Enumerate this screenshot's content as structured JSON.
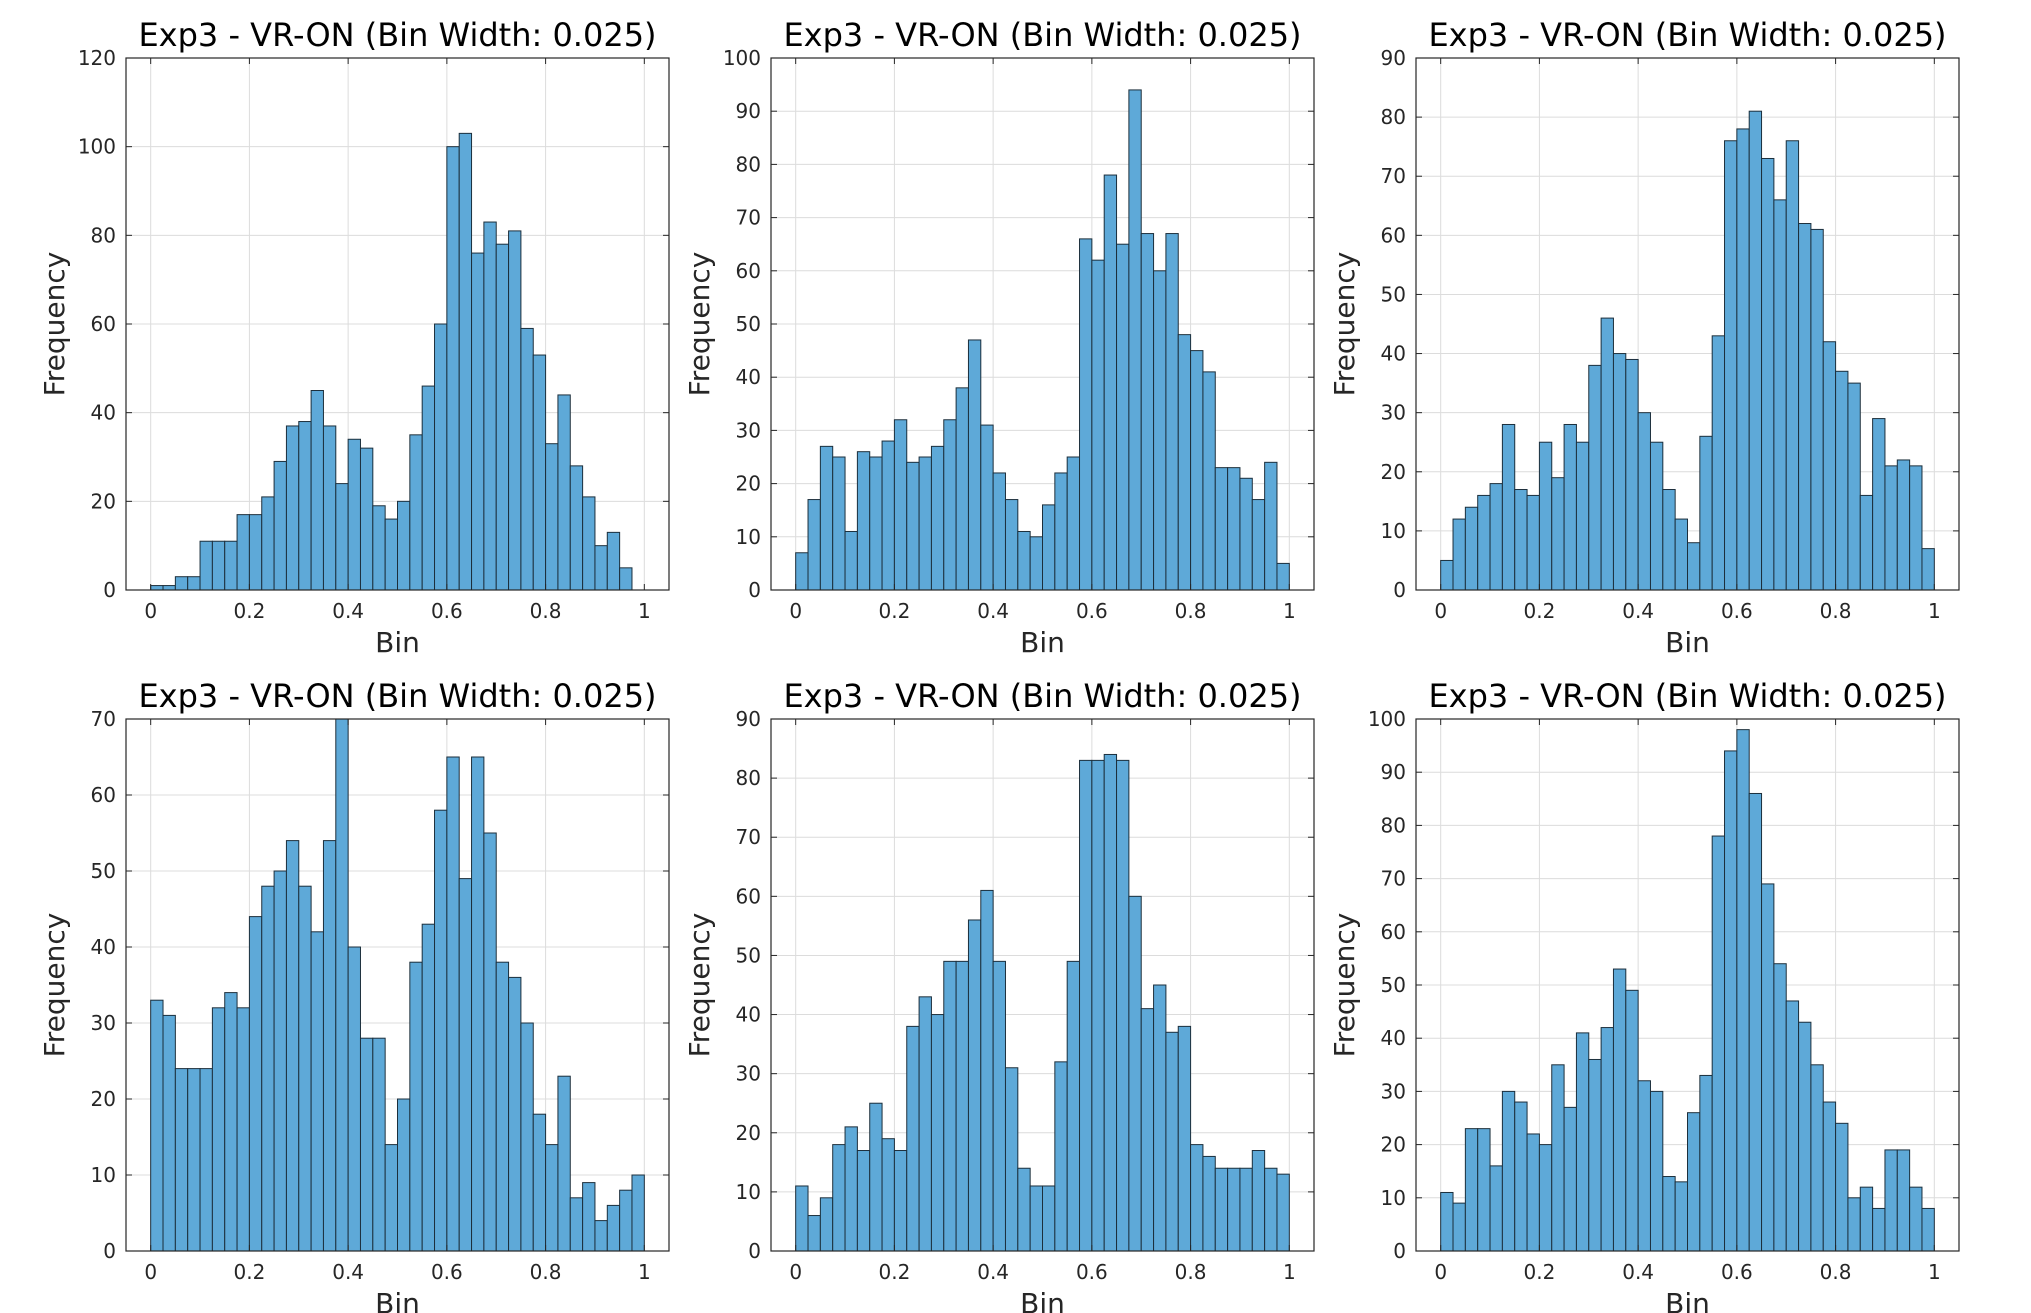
{
  "figure": {
    "background": "#ffffff",
    "bar_color": "#5ea9d8",
    "bar_edge": "#1c2f3c",
    "grid_color": "#dcdcdc"
  },
  "chart_data": [
    {
      "type": "bar",
      "title": "Exp3 - VR-ON (Bin Width: 0.025)",
      "xlabel": "Bin",
      "ylabel": "Frequency",
      "bin_width": 0.025,
      "xlim": [
        -0.05,
        1.05
      ],
      "ylim": [
        0,
        120
      ],
      "xticks": [
        0,
        0.2,
        0.4,
        0.6,
        0.8,
        1
      ],
      "yticks": [
        0,
        20,
        40,
        60,
        80,
        100,
        120
      ],
      "grid": true,
      "values": [
        1,
        1,
        3,
        3,
        11,
        11,
        11,
        17,
        17,
        21,
        29,
        37,
        38,
        45,
        37,
        24,
        34,
        32,
        19,
        16,
        20,
        35,
        46,
        60,
        100,
        103,
        76,
        83,
        78,
        81,
        59,
        53,
        33,
        44,
        28,
        21,
        10,
        13,
        5,
        0
      ]
    },
    {
      "type": "bar",
      "title": "Exp3 - VR-ON (Bin Width: 0.025)",
      "xlabel": "Bin",
      "ylabel": "Frequency",
      "bin_width": 0.025,
      "xlim": [
        -0.05,
        1.05
      ],
      "ylim": [
        0,
        100
      ],
      "xticks": [
        0,
        0.2,
        0.4,
        0.6,
        0.8,
        1
      ],
      "yticks": [
        0,
        10,
        20,
        30,
        40,
        50,
        60,
        70,
        80,
        90,
        100
      ],
      "grid": true,
      "values": [
        7,
        17,
        27,
        25,
        11,
        26,
        25,
        28,
        32,
        24,
        25,
        27,
        32,
        38,
        47,
        31,
        22,
        17,
        11,
        10,
        16,
        22,
        25,
        66,
        62,
        78,
        65,
        94,
        67,
        60,
        67,
        48,
        45,
        41,
        23,
        23,
        21,
        17,
        24,
        5
      ]
    },
    {
      "type": "bar",
      "title": "Exp3 - VR-ON (Bin Width: 0.025)",
      "xlabel": "Bin",
      "ylabel": "Frequency",
      "bin_width": 0.025,
      "xlim": [
        -0.05,
        1.05
      ],
      "ylim": [
        0,
        90
      ],
      "xticks": [
        0,
        0.2,
        0.4,
        0.6,
        0.8,
        1
      ],
      "yticks": [
        0,
        10,
        20,
        30,
        40,
        50,
        60,
        70,
        80,
        90
      ],
      "grid": true,
      "values": [
        5,
        12,
        14,
        16,
        18,
        28,
        17,
        16,
        25,
        19,
        28,
        25,
        38,
        46,
        40,
        39,
        30,
        25,
        17,
        12,
        8,
        26,
        43,
        76,
        78,
        81,
        73,
        66,
        76,
        62,
        61,
        42,
        37,
        35,
        16,
        29,
        21,
        22,
        21,
        7
      ]
    },
    {
      "type": "bar",
      "title": "Exp3 - VR-ON (Bin Width: 0.025)",
      "xlabel": "Bin",
      "ylabel": "Frequency",
      "bin_width": 0.025,
      "xlim": [
        -0.05,
        1.05
      ],
      "ylim": [
        0,
        70
      ],
      "xticks": [
        0,
        0.2,
        0.4,
        0.6,
        0.8,
        1
      ],
      "yticks": [
        0,
        10,
        20,
        30,
        40,
        50,
        60,
        70
      ],
      "grid": true,
      "values": [
        33,
        31,
        24,
        24,
        24,
        32,
        34,
        32,
        44,
        48,
        50,
        54,
        48,
        42,
        54,
        70,
        40,
        28,
        28,
        14,
        20,
        38,
        43,
        58,
        65,
        49,
        65,
        55,
        38,
        36,
        30,
        18,
        14,
        23,
        7,
        9,
        4,
        6,
        8,
        10
      ]
    },
    {
      "type": "bar",
      "title": "Exp3 - VR-ON (Bin Width: 0.025)",
      "xlabel": "Bin",
      "ylabel": "Frequency",
      "bin_width": 0.025,
      "xlim": [
        -0.05,
        1.05
      ],
      "ylim": [
        0,
        90
      ],
      "xticks": [
        0,
        0.2,
        0.4,
        0.6,
        0.8,
        1
      ],
      "yticks": [
        0,
        10,
        20,
        30,
        40,
        50,
        60,
        70,
        80,
        90
      ],
      "grid": true,
      "values": [
        11,
        6,
        9,
        18,
        21,
        17,
        25,
        19,
        17,
        38,
        43,
        40,
        49,
        49,
        56,
        61,
        49,
        31,
        14,
        11,
        11,
        32,
        49,
        83,
        83,
        84,
        83,
        60,
        41,
        45,
        37,
        38,
        18,
        16,
        14,
        14,
        14,
        17,
        14,
        13
      ]
    },
    {
      "type": "bar",
      "title": "Exp3 - VR-ON (Bin Width: 0.025)",
      "xlabel": "Bin",
      "ylabel": "Frequency",
      "bin_width": 0.025,
      "xlim": [
        -0.05,
        1.05
      ],
      "ylim": [
        0,
        100
      ],
      "xticks": [
        0,
        0.2,
        0.4,
        0.6,
        0.8,
        1
      ],
      "yticks": [
        0,
        10,
        20,
        30,
        40,
        50,
        60,
        70,
        80,
        90,
        100
      ],
      "grid": true,
      "values": [
        11,
        9,
        23,
        23,
        16,
        30,
        28,
        22,
        20,
        35,
        27,
        41,
        36,
        42,
        53,
        49,
        32,
        30,
        14,
        13,
        26,
        33,
        78,
        94,
        98,
        86,
        69,
        54,
        47,
        43,
        35,
        28,
        24,
        10,
        12,
        8,
        19,
        19,
        12,
        8
      ]
    }
  ]
}
